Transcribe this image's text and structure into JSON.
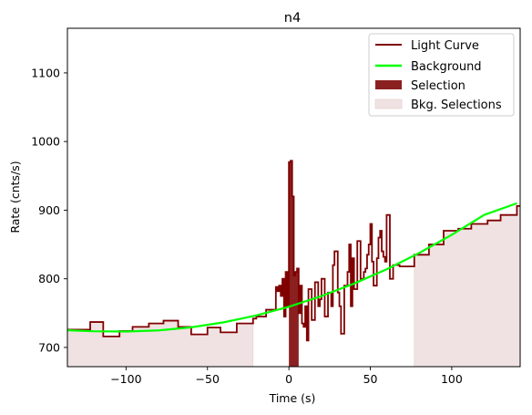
{
  "chart_data": {
    "type": "line",
    "title": "n4",
    "xlabel": "Time (s)",
    "ylabel": "Rate (cnts/s)",
    "xlim": [
      -136,
      142
    ],
    "ylim": [
      672,
      1165
    ],
    "x_ticks": [
      -100,
      -50,
      0,
      50,
      100
    ],
    "x_tick_labels": [
      "−100",
      "−50",
      "0",
      "50",
      "100"
    ],
    "y_ticks": [
      700,
      800,
      900,
      1000,
      1100
    ],
    "y_tick_labels": [
      "700",
      "800",
      "900",
      "1000",
      "1100"
    ],
    "grid": false,
    "legend_position": "top-right",
    "legend": [
      "Light Curve",
      "Background",
      "Selection",
      "Bkg. Selections"
    ],
    "colors": {
      "light_curve": "#800000",
      "background": "#00ff00",
      "selection": "#8b2020",
      "bkg_selection": "#f0e2e2"
    },
    "series": [
      {
        "name": "Light Curve",
        "step": true,
        "x": [
          -136,
          -122,
          -114,
          -104,
          -96,
          -86,
          -77,
          -68,
          -60,
          -50,
          -42,
          -32,
          -22,
          -20,
          -14,
          -8,
          -7,
          -6,
          -5,
          -4,
          -3,
          -2,
          -1,
          0,
          1,
          2,
          3,
          4,
          5,
          6,
          7,
          8,
          9,
          10,
          11,
          12,
          14,
          16,
          18,
          19,
          20,
          22,
          24,
          26,
          27,
          28,
          30,
          31,
          32,
          34,
          36,
          37,
          38,
          39,
          40,
          42,
          44,
          46,
          47,
          48,
          49,
          50,
          51,
          52,
          54,
          55,
          56,
          57,
          58,
          59,
          60,
          62,
          64,
          68,
          77,
          86,
          95,
          104,
          112,
          122,
          130,
          140
        ],
        "y": [
          726,
          737,
          716,
          724,
          730,
          735,
          739,
          730,
          719,
          729,
          722,
          735,
          742,
          745,
          755,
          788,
          782,
          790,
          775,
          800,
          745,
          810,
          760,
          970,
          972,
          920,
          805,
          810,
          815,
          750,
          790,
          735,
          730,
          760,
          710,
          785,
          740,
          795,
          760,
          770,
          800,
          745,
          780,
          760,
          820,
          840,
          780,
          760,
          720,
          790,
          810,
          850,
          760,
          830,
          785,
          855,
          800,
          810,
          815,
          835,
          850,
          880,
          825,
          790,
          830,
          860,
          870,
          840,
          832,
          825,
          893,
          800,
          820,
          818,
          835,
          850,
          870,
          873,
          880,
          885,
          893,
          906
        ]
      },
      {
        "name": "Background",
        "x": [
          -136,
          -120,
          -100,
          -80,
          -60,
          -40,
          -20,
          0,
          20,
          40,
          60,
          80,
          100,
          120,
          140
        ],
        "y": [
          725,
          723.6,
          723.2,
          724.8,
          729.3,
          736.6,
          746.6,
          759.3,
          774.8,
          793.0,
          813.9,
          837.6,
          864.1,
          893.2,
          910
        ]
      }
    ],
    "selection": [
      0,
      6
    ],
    "bkg_selections": [
      [
        -136,
        -22
      ],
      [
        77,
        142
      ]
    ]
  }
}
